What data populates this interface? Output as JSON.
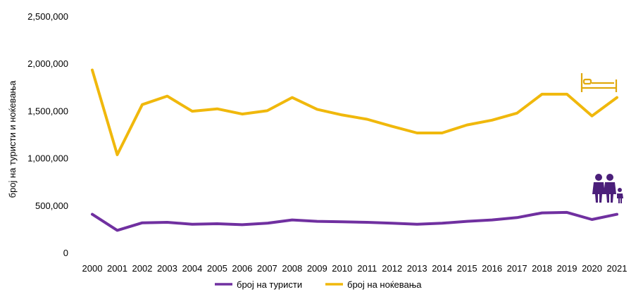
{
  "chart_data": {
    "type": "line",
    "categories": [
      "2000",
      "2001",
      "2002",
      "2003",
      "2004",
      "2005",
      "2006",
      "2007",
      "2008",
      "2009",
      "2010",
      "2011",
      "2012",
      "2013",
      "2014",
      "2015",
      "2016",
      "2017",
      "2018",
      "2019",
      "2020",
      "2021"
    ],
    "series": [
      {
        "name": "број на туристи",
        "color": "#7030a0",
        "values": [
          405000,
          235000,
          315000,
          320000,
          300000,
          305000,
          295000,
          310000,
          345000,
          330000,
          325000,
          320000,
          310000,
          300000,
          310000,
          330000,
          345000,
          370000,
          420000,
          425000,
          350000,
          405000
        ]
      },
      {
        "name": "број на ноќевања",
        "color": "#f0b80c",
        "values": [
          1930000,
          1035000,
          1565000,
          1655000,
          1495000,
          1520000,
          1465000,
          1500000,
          1640000,
          1515000,
          1455000,
          1410000,
          1335000,
          1265000,
          1265000,
          1350000,
          1400000,
          1475000,
          1675000,
          1675000,
          1445000,
          1640000
        ]
      }
    ],
    "ylabel": "број на туристи и ноќевања",
    "ylim": [
      0,
      2500000
    ],
    "yticks": [
      "0",
      "500,000",
      "1,000,000",
      "1,500,000",
      "2,000,000",
      "2,500,000"
    ],
    "grid": false,
    "legend": "bottom",
    "icons": [
      "bed-icon",
      "family-icon"
    ]
  }
}
